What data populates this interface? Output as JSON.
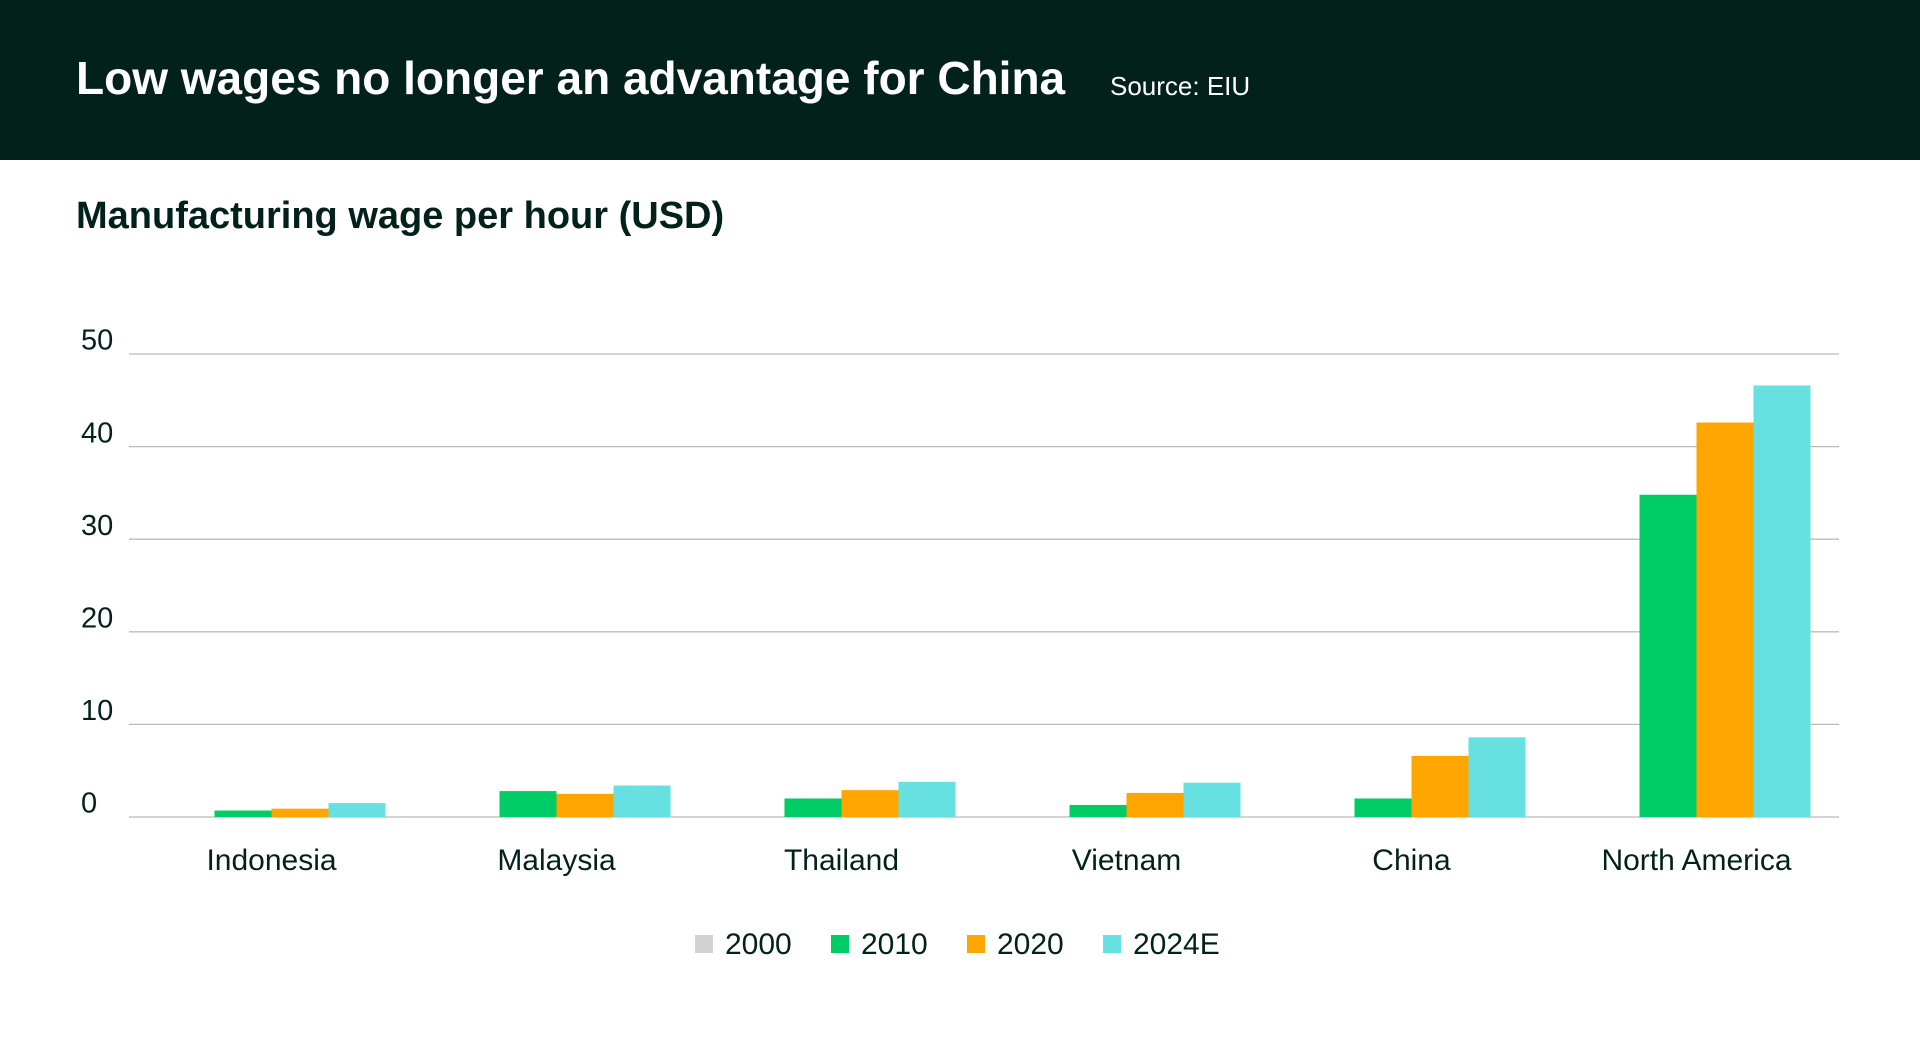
{
  "chart_data": {
    "type": "bar",
    "title": "Low wages no longer an advantage for China",
    "source": "Source: EIU",
    "subtitle": "Manufacturing wage per hour (USD)",
    "categories": [
      "Indonesia",
      "Malaysia",
      "Thailand",
      "Vietnam",
      "China",
      "North America"
    ],
    "series": [
      {
        "name": "2000",
        "color": "#d3d3d3",
        "values": [
          null,
          null,
          null,
          null,
          null,
          null
        ]
      },
      {
        "name": "2010",
        "color": "#00cc66",
        "values": [
          0.7,
          2.8,
          2.0,
          1.3,
          2.0,
          34.8
        ]
      },
      {
        "name": "2020",
        "color": "#ffa500",
        "values": [
          0.9,
          2.5,
          2.9,
          2.6,
          6.6,
          42.6
        ]
      },
      {
        "name": "2024E",
        "color": "#66e0e0",
        "values": [
          1.5,
          3.4,
          3.8,
          3.7,
          8.6,
          46.6
        ]
      }
    ],
    "ylim": [
      0,
      50
    ],
    "yticks": [
      0,
      10,
      20,
      30,
      40,
      50
    ],
    "grid": true
  }
}
